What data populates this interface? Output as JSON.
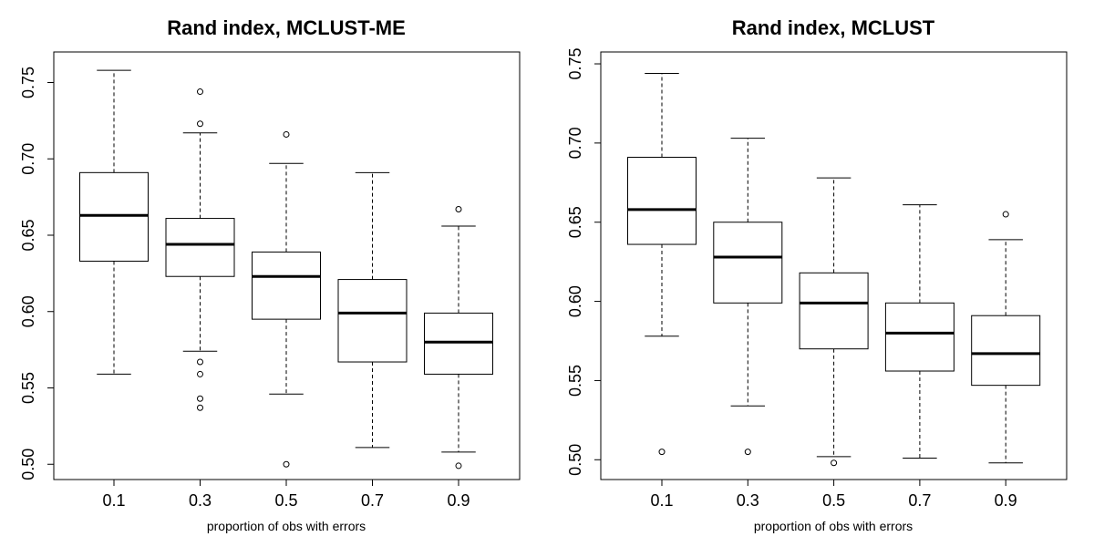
{
  "chart_data": [
    {
      "type": "boxplot",
      "title": "Rand index, MCLUST-ME",
      "xlabel": "proportion of obs with errors",
      "ylabel": "",
      "categories": [
        "0.1",
        "0.3",
        "0.5",
        "0.7",
        "0.9"
      ],
      "ylim": [
        0.49,
        0.77
      ],
      "yticks": [
        0.5,
        0.55,
        0.6,
        0.65,
        0.7,
        0.75
      ],
      "ytick_labels": [
        "0.50",
        "0.55",
        "0.60",
        "0.65",
        "0.70",
        "0.75"
      ],
      "boxes": [
        {
          "category": "0.1",
          "whisker_low": 0.559,
          "q1": 0.633,
          "median": 0.663,
          "q3": 0.691,
          "whisker_high": 0.758,
          "outliers": []
        },
        {
          "category": "0.3",
          "whisker_low": 0.574,
          "q1": 0.623,
          "median": 0.644,
          "q3": 0.661,
          "whisker_high": 0.717,
          "outliers": [
            0.744,
            0.723,
            0.567,
            0.559,
            0.543,
            0.537
          ]
        },
        {
          "category": "0.5",
          "whisker_low": 0.546,
          "q1": 0.595,
          "median": 0.623,
          "q3": 0.639,
          "whisker_high": 0.697,
          "outliers": [
            0.716,
            0.5
          ]
        },
        {
          "category": "0.7",
          "whisker_low": 0.511,
          "q1": 0.567,
          "median": 0.599,
          "q3": 0.621,
          "whisker_high": 0.691,
          "outliers": []
        },
        {
          "category": "0.9",
          "whisker_low": 0.508,
          "q1": 0.559,
          "median": 0.58,
          "q3": 0.599,
          "whisker_high": 0.656,
          "outliers": [
            0.667,
            0.499
          ]
        }
      ]
    },
    {
      "type": "boxplot",
      "title": "Rand index, MCLUST",
      "xlabel": "proportion of obs with errors",
      "ylabel": "",
      "categories": [
        "0.1",
        "0.3",
        "0.5",
        "0.7",
        "0.9"
      ],
      "ylim": [
        0.4875,
        0.7575
      ],
      "yticks": [
        0.5,
        0.55,
        0.6,
        0.65,
        0.7,
        0.75
      ],
      "ytick_labels": [
        "0.50",
        "0.55",
        "0.60",
        "0.65",
        "0.70",
        "0.75"
      ],
      "boxes": [
        {
          "category": "0.1",
          "whisker_low": 0.578,
          "q1": 0.636,
          "median": 0.658,
          "q3": 0.691,
          "whisker_high": 0.744,
          "outliers": [
            0.505
          ]
        },
        {
          "category": "0.3",
          "whisker_low": 0.534,
          "q1": 0.599,
          "median": 0.628,
          "q3": 0.65,
          "whisker_high": 0.703,
          "outliers": [
            0.505
          ]
        },
        {
          "category": "0.5",
          "whisker_low": 0.502,
          "q1": 0.57,
          "median": 0.599,
          "q3": 0.618,
          "whisker_high": 0.678,
          "outliers": [
            0.498
          ]
        },
        {
          "category": "0.7",
          "whisker_low": 0.501,
          "q1": 0.556,
          "median": 0.58,
          "q3": 0.599,
          "whisker_high": 0.661,
          "outliers": []
        },
        {
          "category": "0.9",
          "whisker_low": 0.498,
          "q1": 0.547,
          "median": 0.567,
          "q3": 0.591,
          "whisker_high": 0.639,
          "outliers": [
            0.655
          ]
        }
      ]
    }
  ]
}
